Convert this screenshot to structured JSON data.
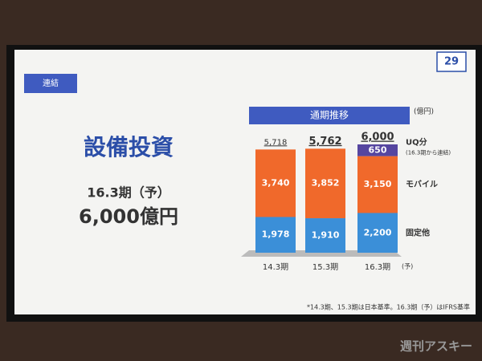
{
  "slide": {
    "page_number": "29",
    "tag": "連結",
    "title": "設備投資",
    "subtitle": "16.3期（予）",
    "headline": "6,000億円",
    "footnote": "*14.3期、15.3期は日本基準。16.3期（予）はIFRS基準",
    "watermark": "週刊アスキー"
  },
  "chart_data": {
    "type": "bar",
    "stacked": true,
    "title": "通期推移",
    "unit": "(億円)",
    "categories": [
      "14.3期",
      "15.3期",
      "16.3期"
    ],
    "forecast_note": "(予)",
    "series": [
      {
        "name": "固定他",
        "color": "#3b8fd8",
        "values": [
          1978,
          1910,
          2200
        ],
        "value_labels": [
          "1,978",
          "1,910",
          "2,200"
        ]
      },
      {
        "name": "モバイル",
        "color": "#f0692b",
        "values": [
          3740,
          3852,
          3150
        ],
        "value_labels": [
          "3,740",
          "3,852",
          "3,150"
        ]
      },
      {
        "name": "UQ分",
        "note": "(16.3期から連結)",
        "color": "#5646a0",
        "values": [
          null,
          null,
          650
        ],
        "value_labels": [
          null,
          null,
          "650"
        ]
      }
    ],
    "totals": [
      5718,
      5762,
      6000
    ],
    "total_labels": [
      "5,718",
      "5,762",
      "6,000"
    ]
  }
}
